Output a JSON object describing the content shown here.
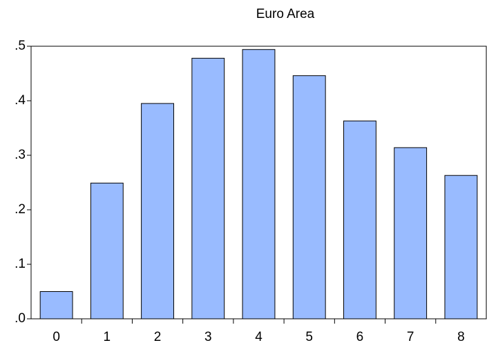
{
  "chart_data": {
    "type": "bar",
    "title": "Euro Area",
    "categories": [
      "0",
      "1",
      "2",
      "3",
      "4",
      "5",
      "6",
      "7",
      "8"
    ],
    "values": [
      0.05,
      0.249,
      0.395,
      0.478,
      0.494,
      0.446,
      0.363,
      0.314,
      0.263
    ],
    "color": "#99bbff",
    "ylim": [
      0,
      0.5
    ],
    "yticks": [
      {
        "value": 0,
        "label": ".0"
      },
      {
        "value": 0.1,
        "label": ".1"
      },
      {
        "value": 0.2,
        "label": ".2"
      },
      {
        "value": 0.3,
        "label": ".3"
      },
      {
        "value": 0.4,
        "label": ".4"
      },
      {
        "value": 0.5,
        "label": ".5"
      }
    ],
    "grid": false
  }
}
